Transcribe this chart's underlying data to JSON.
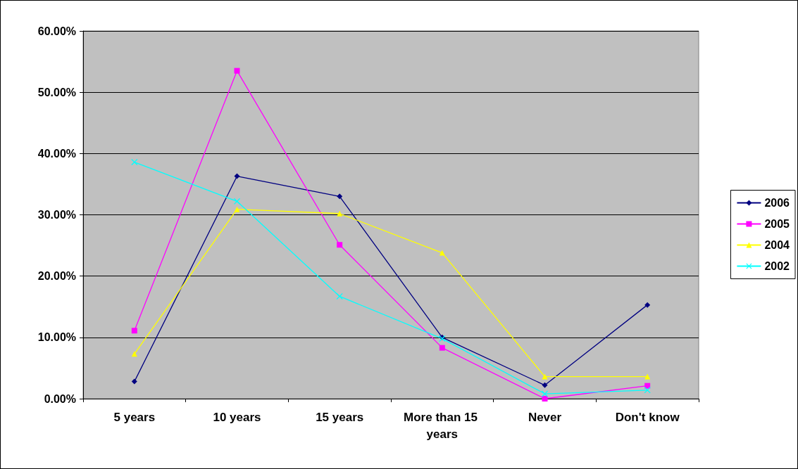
{
  "chart_data": {
    "type": "line",
    "categories": [
      "5 years",
      "10 years",
      "15 years",
      "More than 15 years",
      "Never",
      "Don't know"
    ],
    "series": [
      {
        "name": "2006",
        "color": "#000080",
        "marker": "diamond",
        "values": [
          2.8,
          36.3,
          33.0,
          10.0,
          2.2,
          15.3
        ]
      },
      {
        "name": "2005",
        "color": "#ff00ff",
        "marker": "square",
        "values": [
          11.1,
          53.5,
          25.1,
          8.3,
          0.0,
          2.1
        ]
      },
      {
        "name": "2004",
        "color": "#ffff00",
        "marker": "triangle",
        "values": [
          7.3,
          30.9,
          30.2,
          23.8,
          3.6,
          3.6
        ]
      },
      {
        "name": "2002",
        "color": "#00ffff",
        "marker": "cross",
        "values": [
          38.6,
          32.2,
          16.7,
          9.8,
          0.8,
          1.4
        ]
      }
    ],
    "ylim": [
      0,
      60
    ],
    "yticks": [
      {
        "value": 0,
        "label": "0.00%"
      },
      {
        "value": 10,
        "label": "10.00%"
      },
      {
        "value": 20,
        "label": "20.00%"
      },
      {
        "value": 30,
        "label": "30.00%"
      },
      {
        "value": 40,
        "label": "40.00%"
      },
      {
        "value": 50,
        "label": "50.00%"
      },
      {
        "value": 60,
        "label": "60.00%"
      }
    ],
    "grid": "y",
    "legend": "right"
  }
}
